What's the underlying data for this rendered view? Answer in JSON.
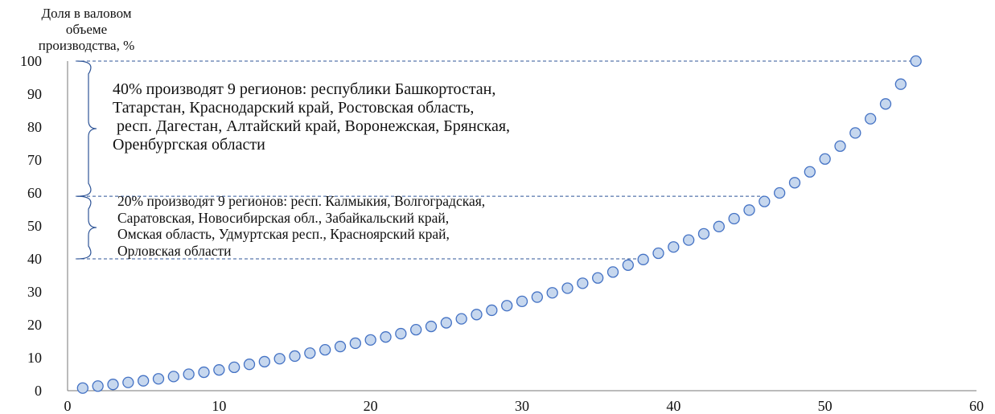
{
  "chart_data": {
    "type": "scatter",
    "ylabel_lines": [
      "Доля в валовом",
      "объеме",
      "производства, %"
    ],
    "xlabel": "",
    "xlim": [
      0,
      60
    ],
    "ylim": [
      0,
      100
    ],
    "x_ticks": [
      0,
      10,
      20,
      30,
      40,
      50,
      60
    ],
    "y_ticks": [
      0,
      10,
      20,
      30,
      40,
      50,
      60,
      70,
      80,
      90,
      100
    ],
    "grid": false,
    "marker_color": "#4472c4",
    "marker_fill": "#c6d7ee",
    "dash_color": "#2f5597",
    "points": [
      {
        "x": 1,
        "y": 0.8
      },
      {
        "x": 2,
        "y": 1.4
      },
      {
        "x": 3,
        "y": 1.9
      },
      {
        "x": 4,
        "y": 2.5
      },
      {
        "x": 5,
        "y": 3.0
      },
      {
        "x": 6,
        "y": 3.6
      },
      {
        "x": 7,
        "y": 4.3
      },
      {
        "x": 8,
        "y": 5.0
      },
      {
        "x": 9,
        "y": 5.6
      },
      {
        "x": 10,
        "y": 6.3
      },
      {
        "x": 11,
        "y": 7.1
      },
      {
        "x": 12,
        "y": 8.0
      },
      {
        "x": 13,
        "y": 8.8
      },
      {
        "x": 14,
        "y": 9.7
      },
      {
        "x": 15,
        "y": 10.5
      },
      {
        "x": 16,
        "y": 11.4
      },
      {
        "x": 17,
        "y": 12.4
      },
      {
        "x": 18,
        "y": 13.4
      },
      {
        "x": 19,
        "y": 14.4
      },
      {
        "x": 20,
        "y": 15.4
      },
      {
        "x": 21,
        "y": 16.3
      },
      {
        "x": 22,
        "y": 17.3
      },
      {
        "x": 23,
        "y": 18.5
      },
      {
        "x": 24,
        "y": 19.5
      },
      {
        "x": 25,
        "y": 20.6
      },
      {
        "x": 26,
        "y": 21.8
      },
      {
        "x": 27,
        "y": 23.1
      },
      {
        "x": 28,
        "y": 24.4
      },
      {
        "x": 29,
        "y": 25.8
      },
      {
        "x": 30,
        "y": 27.1
      },
      {
        "x": 31,
        "y": 28.4
      },
      {
        "x": 32,
        "y": 29.7
      },
      {
        "x": 33,
        "y": 31.1
      },
      {
        "x": 34,
        "y": 32.6
      },
      {
        "x": 35,
        "y": 34.2
      },
      {
        "x": 36,
        "y": 36.0
      },
      {
        "x": 37,
        "y": 38.1
      },
      {
        "x": 38,
        "y": 39.8
      },
      {
        "x": 39,
        "y": 41.7
      },
      {
        "x": 40,
        "y": 43.6
      },
      {
        "x": 41,
        "y": 45.7
      },
      {
        "x": 42,
        "y": 47.6
      },
      {
        "x": 43,
        "y": 49.8
      },
      {
        "x": 44,
        "y": 52.2
      },
      {
        "x": 45,
        "y": 54.8
      },
      {
        "x": 46,
        "y": 57.4
      },
      {
        "x": 47,
        "y": 60.0
      },
      {
        "x": 48,
        "y": 63.1
      },
      {
        "x": 49,
        "y": 66.4
      },
      {
        "x": 50,
        "y": 70.3
      },
      {
        "x": 51,
        "y": 74.2
      },
      {
        "x": 52,
        "y": 78.2
      },
      {
        "x": 53,
        "y": 82.5
      },
      {
        "x": 54,
        "y": 87.0
      },
      {
        "x": 55,
        "y": 93.0
      },
      {
        "x": 56,
        "y": 100.0
      }
    ],
    "reference_lines": [
      {
        "y": 100,
        "x_end": 56
      },
      {
        "y": 59,
        "x_end": 46
      },
      {
        "y": 40,
        "x_end": 38
      }
    ],
    "brackets": [
      {
        "y_from": 59,
        "y_to": 100
      },
      {
        "y_from": 40,
        "y_to": 59
      }
    ],
    "annotations": [
      {
        "lines": [
          "40% производят 9 регионов: республики Башкортостан,",
          "Татарстан, Краснодарский край, Ростовская область,",
          " респ. Дагестан, Алтайский край, Воронежская, Брянская,",
          "Оренбургская области"
        ]
      },
      {
        "lines": [
          "20% производят 9 регионов: респ. Калмыкия, Волгоградская,",
          "Саратовская, Новосибирская обл., Забайкальский край,",
          "Омская область, Удмуртская респ., Красноярский край,",
          "Орловская области"
        ]
      }
    ]
  }
}
